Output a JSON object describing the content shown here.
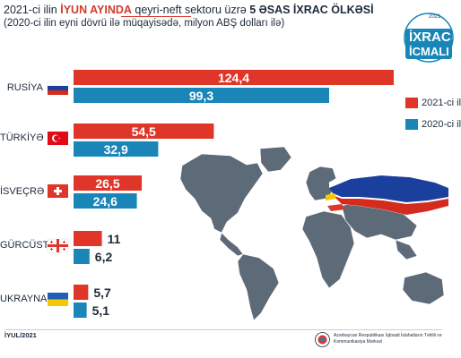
{
  "header": {
    "title_prefix": "2021-ci ilin",
    "title_highlight": "İYUN AYINDA",
    "title_mid": "qeyri-neft sektoru üzrə",
    "title_bold": "5 ƏSAS İXRAC ÖLKƏSİ",
    "subtitle": "(2020-ci ilin eyni dövrü ilə müqayisədə, milyon ABŞ dolları ilə)"
  },
  "badge": {
    "year": "2021",
    "line1": "İXRAC",
    "line2": "İCMALI"
  },
  "colors": {
    "series_2021": "#e0362a",
    "series_2020": "#1a86b8",
    "map_land": "#5d6a78",
    "accent": "#d23b2e",
    "badge_bg": "#1a86b8"
  },
  "chart_data": {
    "type": "bar",
    "orientation": "horizontal",
    "categories": [
      "RUSİYA",
      "TÜRKİYƏ",
      "İSVEÇRƏ",
      "GÜRCÜSTAN",
      "UKRAYNA"
    ],
    "series": [
      {
        "name": "2021-ci il",
        "values": [
          124.4,
          54.5,
          26.5,
          11,
          5.7
        ],
        "labels": [
          "124,4",
          "54,5",
          "26,5",
          "11",
          "5,7"
        ],
        "color": "#e0362a"
      },
      {
        "name": "2020-ci il",
        "values": [
          99.3,
          32.9,
          24.6,
          6.2,
          5.1
        ],
        "labels": [
          "99,3",
          "32,9",
          "24,6",
          "6,2",
          "5,1"
        ],
        "color": "#1a86b8"
      }
    ],
    "flags": [
      "russia-flag-icon",
      "turkey-flag-icon",
      "switzerland-flag-icon",
      "georgia-flag-icon",
      "ukraine-flag-icon"
    ],
    "legend_placement": "right",
    "grid": false
  },
  "footer": {
    "date": "İYUL/2021",
    "org": "Azərbaycan Respublikası İqtisadi İslahatların Təhlili və Kommunikasiya Mərkəzi"
  }
}
